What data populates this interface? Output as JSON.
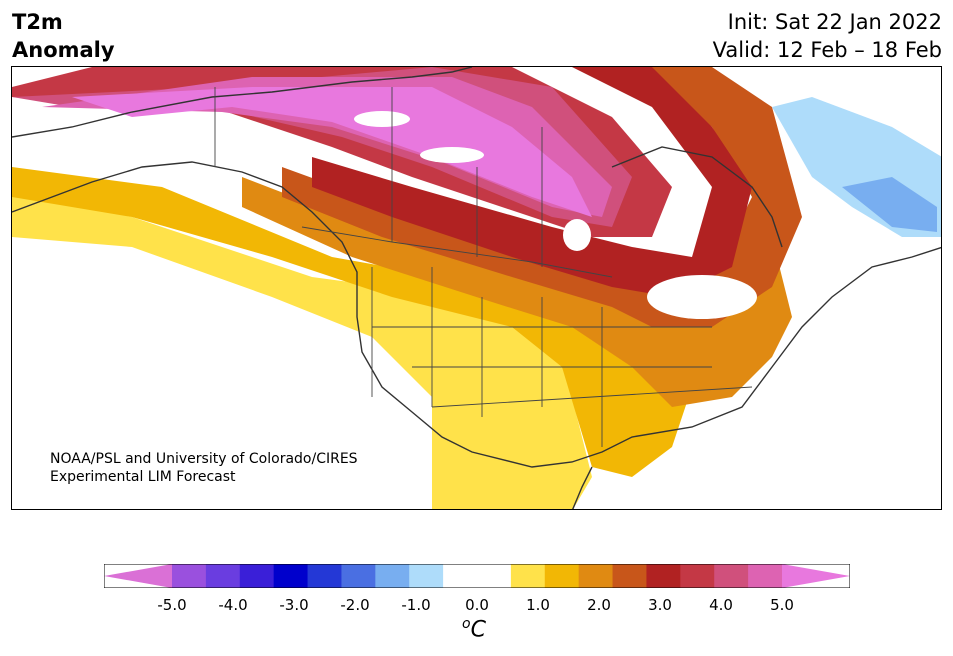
{
  "title": {
    "line1": "T2m",
    "line2": "Anomaly"
  },
  "dates": {
    "init": "Init: Sat 22 Jan 2022",
    "valid": "Valid: 12 Feb – 18 Feb"
  },
  "credit": {
    "line1": "NOAA/PSL and University of Colorado/CIRES",
    "line2": "Experimental LIM Forecast"
  },
  "colorbar": {
    "colors": [
      "#da70d6",
      "#9a50de",
      "#6a3de0",
      "#3a1fd8",
      "#0000cc",
      "#2438d6",
      "#4a6fe2",
      "#78aef0",
      "#aedcfa",
      "#ffffff",
      "#ffffff",
      "#ffe24a",
      "#f2b705",
      "#e08a12",
      "#c8561a",
      "#b12222",
      "#c43845",
      "#d0507c",
      "#dd63b2",
      "#e878de"
    ],
    "ticks": [
      "-5.0",
      "-4.0",
      "-3.0",
      "-2.0",
      "-1.0",
      "0.0",
      "1.0",
      "2.0",
      "3.0",
      "4.0",
      "5.0"
    ],
    "unit_base": "o",
    "unit_letter": "C"
  }
}
